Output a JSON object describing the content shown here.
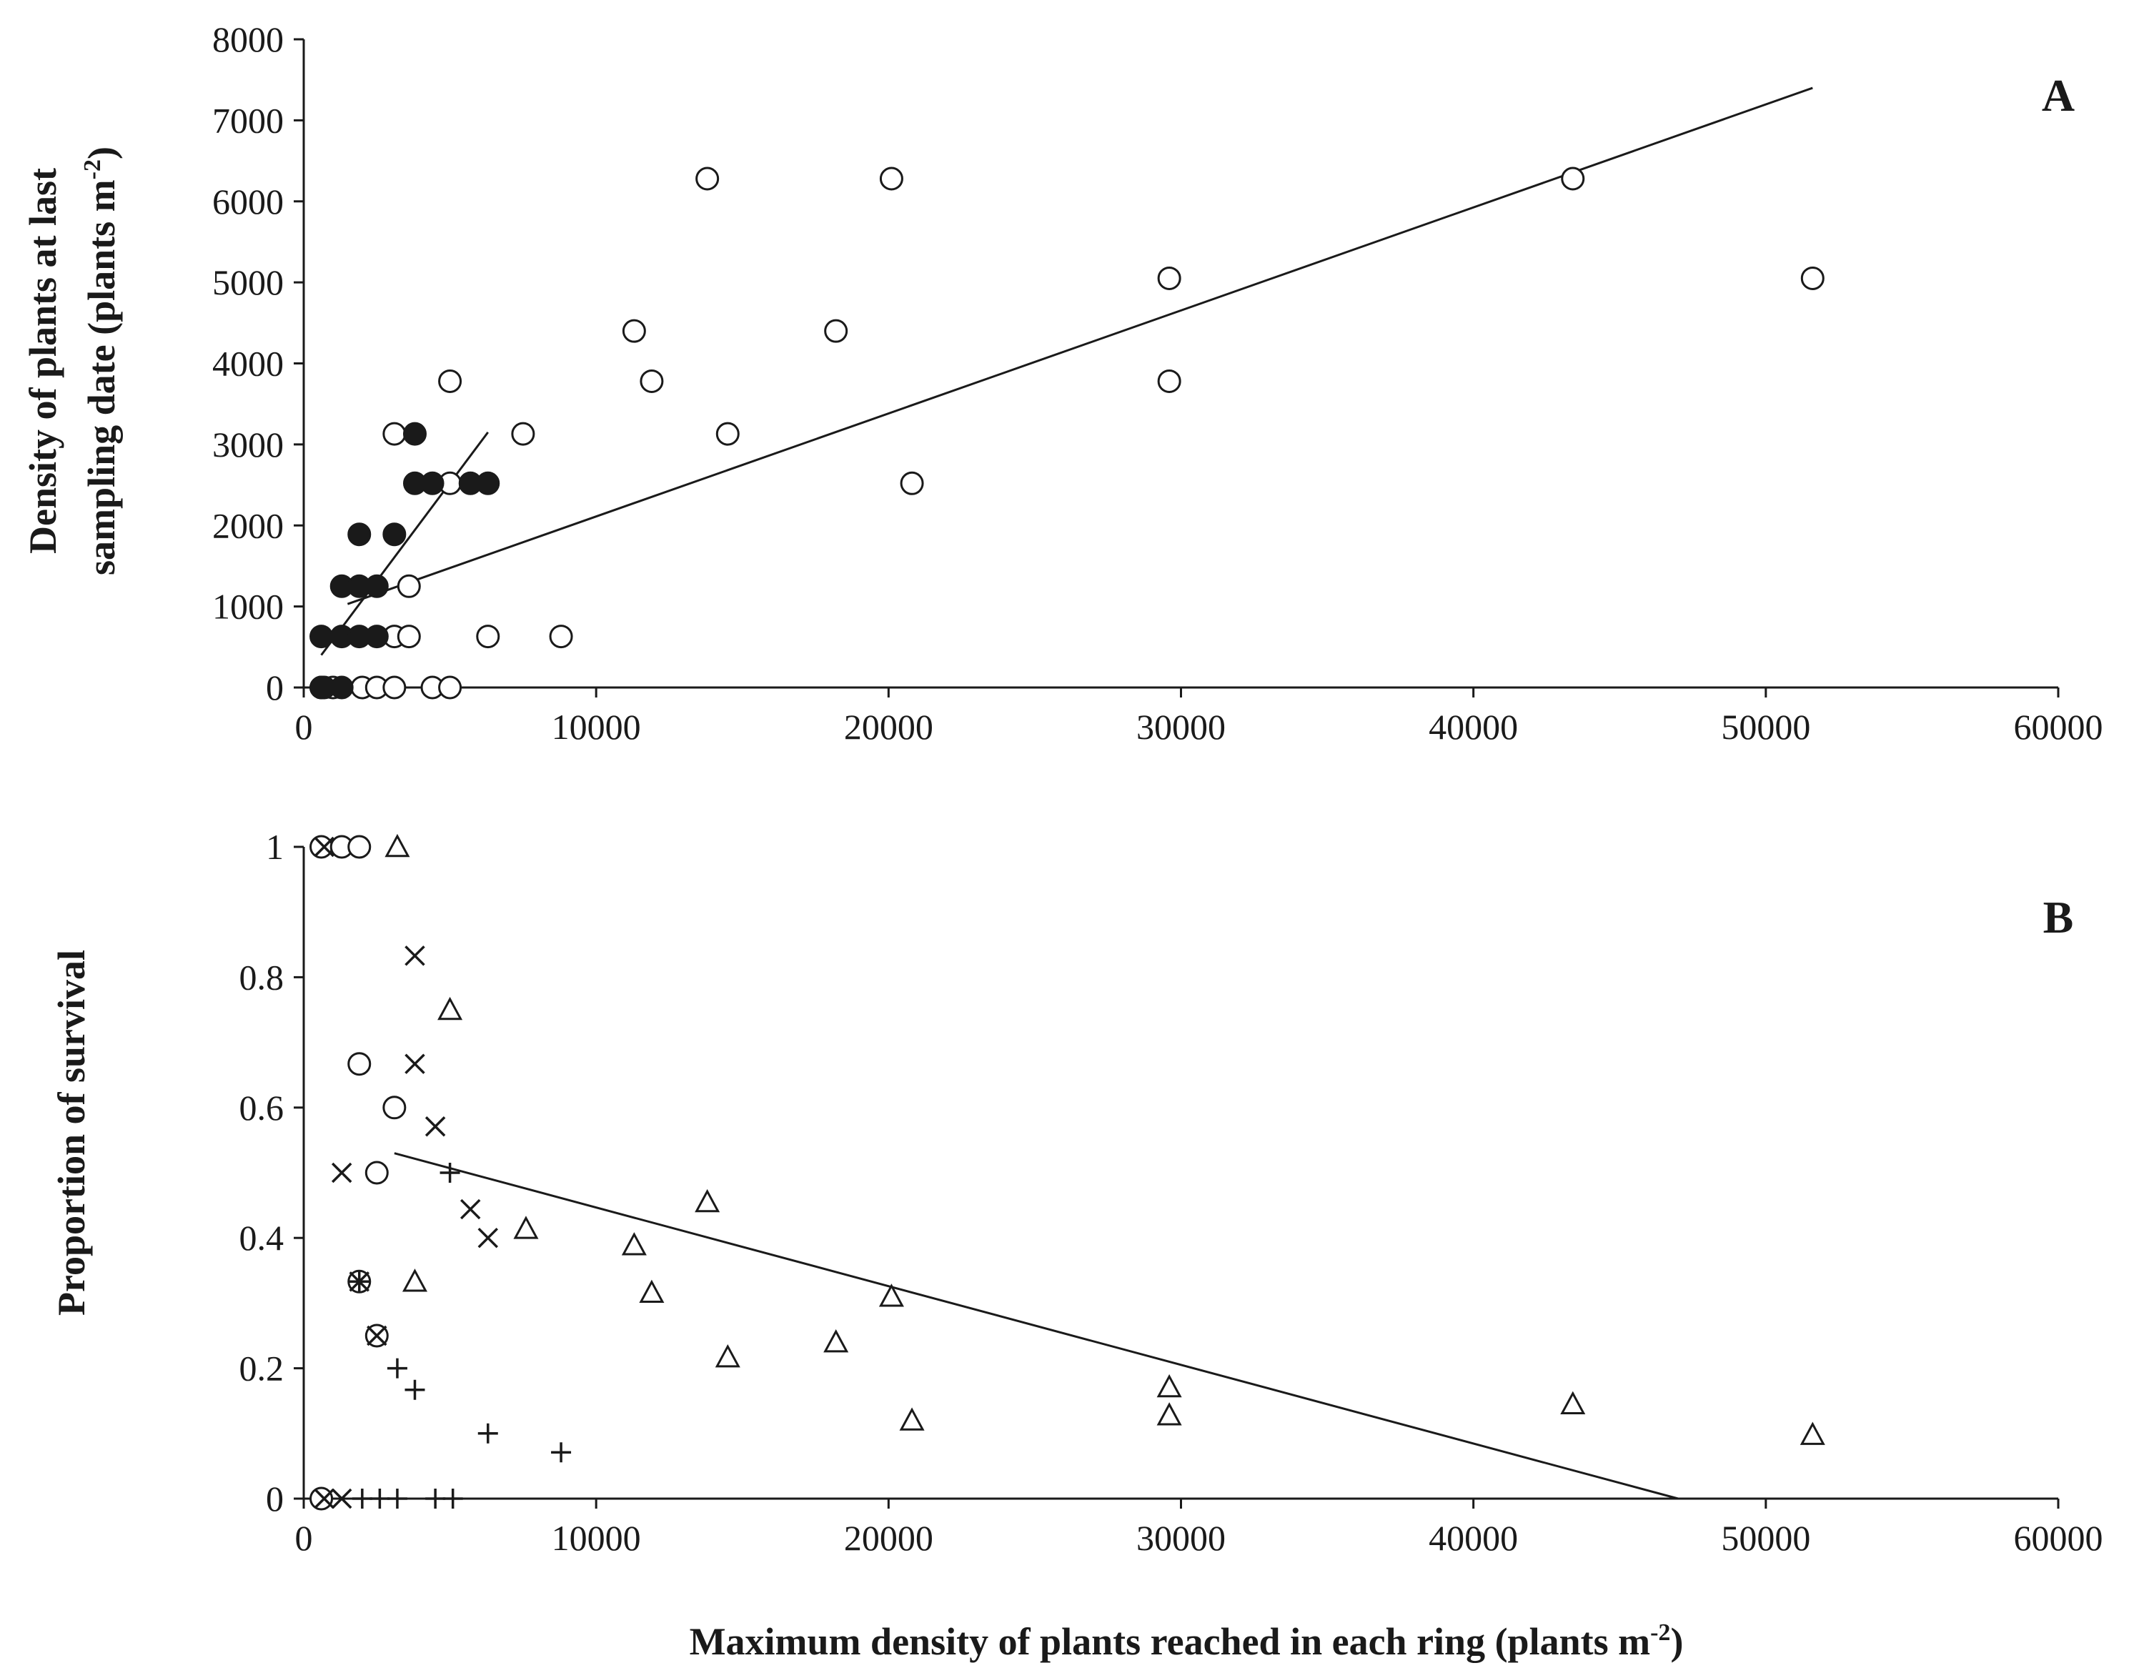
{
  "chart_data": [
    {
      "panel": "A",
      "type": "scatter",
      "xlabel": "",
      "ylabel_line1": "Density of plants at last",
      "ylabel_line2": "sampling date (plants m",
      "ylabel_sup": "-2",
      "ylabel_close": ")",
      "xlim": [
        0,
        60000
      ],
      "ylim": [
        0,
        8000
      ],
      "xticks": [
        "0",
        "10000",
        "20000",
        "30000",
        "40000",
        "50000",
        "60000"
      ],
      "yticks": [
        "0",
        "1000",
        "2000",
        "3000",
        "4000",
        "5000",
        "6000",
        "7000",
        "8000"
      ],
      "series": [
        {
          "name": "open circles",
          "marker": "open-circle",
          "points": [
            [
              600,
              0
            ],
            [
              1000,
              0
            ],
            [
              2000,
              0
            ],
            [
              2500,
              0
            ],
            [
              3100,
              0
            ],
            [
              4400,
              0
            ],
            [
              5000,
              0
            ],
            [
              3100,
              630
            ],
            [
              3600,
              630
            ],
            [
              6300,
              630
            ],
            [
              8800,
              630
            ],
            [
              3600,
              1250
            ],
            [
              5000,
              2520
            ],
            [
              20800,
              2520
            ],
            [
              3100,
              3130
            ],
            [
              7500,
              3130
            ],
            [
              14500,
              3130
            ],
            [
              5000,
              3780
            ],
            [
              11900,
              3780
            ],
            [
              29600,
              3780
            ],
            [
              11300,
              4400
            ],
            [
              18200,
              4400
            ],
            [
              29600,
              5050
            ],
            [
              51600,
              5050
            ],
            [
              13800,
              6280
            ],
            [
              20100,
              6280
            ],
            [
              43400,
              6280
            ]
          ]
        },
        {
          "name": "filled circles",
          "marker": "filled-circle",
          "points": [
            [
              600,
              0
            ],
            [
              700,
              0
            ],
            [
              1300,
              0
            ],
            [
              600,
              630
            ],
            [
              1300,
              630
            ],
            [
              1900,
              630
            ],
            [
              2500,
              630
            ],
            [
              1300,
              1250
            ],
            [
              1900,
              1250
            ],
            [
              2500,
              1250
            ],
            [
              1900,
              1890
            ],
            [
              3100,
              1890
            ],
            [
              3800,
              2520
            ],
            [
              4400,
              2520
            ],
            [
              5700,
              2520
            ],
            [
              6300,
              2520
            ],
            [
              3800,
              3130
            ]
          ]
        }
      ],
      "trendlines": [
        {
          "from": [
            600,
            400
          ],
          "to": [
            6300,
            3150
          ]
        },
        {
          "from": [
            1500,
            1030
          ],
          "to": [
            51600,
            7400
          ]
        }
      ]
    },
    {
      "panel": "B",
      "type": "scatter",
      "xlabel": "Maximum density of plants reached in each ring (plants m",
      "xlabel_sup": "-2",
      "xlabel_close": ")",
      "ylabel": "Proportion of survival",
      "xlim": [
        0,
        60000
      ],
      "ylim": [
        0,
        1
      ],
      "xticks": [
        "0",
        "10000",
        "20000",
        "30000",
        "40000",
        "50000",
        "60000"
      ],
      "yticks": [
        "0",
        "0.2",
        "0.4",
        "0.6",
        "0.8",
        "1"
      ],
      "series": [
        {
          "name": "open circles",
          "marker": "open-circle",
          "points": [
            [
              600,
              1
            ],
            [
              1300,
              1
            ],
            [
              1900,
              1
            ],
            [
              1900,
              0.667
            ],
            [
              3100,
              0.6
            ],
            [
              2500,
              0.5
            ],
            [
              1900,
              0.333
            ],
            [
              2500,
              0.25
            ],
            [
              600,
              0
            ]
          ]
        },
        {
          "name": "crosses",
          "marker": "x",
          "points": [
            [
              700,
              1
            ],
            [
              3800,
              0.833
            ],
            [
              3800,
              0.667
            ],
            [
              4500,
              0.571
            ],
            [
              1300,
              0.5
            ],
            [
              5700,
              0.444
            ],
            [
              6300,
              0.4
            ],
            [
              1900,
              0.333
            ],
            [
              2500,
              0.25
            ],
            [
              700,
              0
            ],
            [
              1300,
              0
            ]
          ]
        },
        {
          "name": "plus",
          "marker": "plus",
          "points": [
            [
              5000,
              0.5
            ],
            [
              1900,
              0.333
            ],
            [
              3200,
              0.2
            ],
            [
              3800,
              0.167
            ],
            [
              6300,
              0.1
            ],
            [
              8800,
              0.071
            ],
            [
              2000,
              0
            ],
            [
              2600,
              0
            ],
            [
              3200,
              0
            ],
            [
              4500,
              0
            ],
            [
              5100,
              0
            ]
          ]
        },
        {
          "name": "triangles",
          "marker": "open-triangle",
          "points": [
            [
              3200,
              1
            ],
            [
              5000,
              0.75
            ],
            [
              3800,
              0.333
            ],
            [
              7600,
              0.414
            ],
            [
              11300,
              0.389
            ],
            [
              11900,
              0.316
            ],
            [
              13800,
              0.455
            ],
            [
              14500,
              0.217
            ],
            [
              18200,
              0.24
            ],
            [
              20100,
              0.31
            ],
            [
              20800,
              0.12
            ],
            [
              29600,
              0.171
            ],
            [
              29600,
              0.128
            ],
            [
              43400,
              0.145
            ],
            [
              51600,
              0.098
            ]
          ]
        }
      ],
      "trendlines": [
        {
          "from": [
            3100,
            0.53
          ],
          "to": [
            47000,
            0
          ]
        }
      ]
    }
  ]
}
